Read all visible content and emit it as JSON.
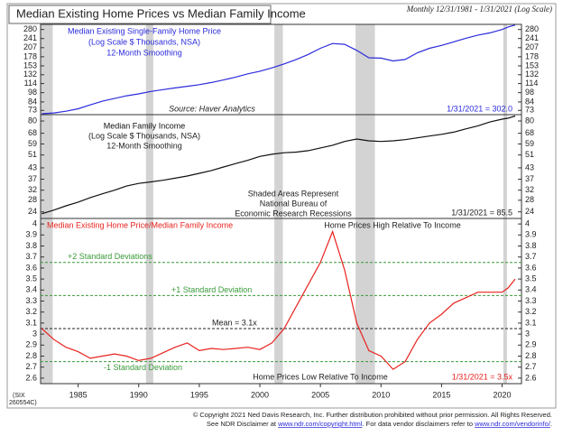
{
  "title": "Median Existing Home Prices vs Median Family Income",
  "subtitle": "Monthly 12/31/1981 - 1/31/2021 (Log Scale)",
  "id_label": [
    "(SIX",
    "260554C)"
  ],
  "footer": [
    "© Copyright 2021 Ned Davis Research, Inc.  Further distribution prohibited without prior permission.  All Rights Reserved.",
    "See NDR Disclaimer at ",
    "www.ndr.com/copyright.html",
    ".  For data vendor disclaimers refer to ",
    "www.ndr.com/vendorinfo/",
    "."
  ],
  "recessions": [
    [
      1981.5,
      1982.9
    ],
    [
      1990.6,
      1991.2
    ],
    [
      2001.2,
      2001.9
    ],
    [
      2007.9,
      2009.5
    ],
    [
      2020.1,
      2020.4
    ]
  ],
  "chart_data": [
    {
      "type": "line",
      "log_scale": true,
      "x": [
        1982,
        1983,
        1984,
        1985,
        1986,
        1987,
        1988,
        1989,
        1990,
        1991,
        1992,
        1993,
        1994,
        1995,
        1996,
        1997,
        1998,
        1999,
        2000,
        2001,
        2002,
        2003,
        2004,
        2005,
        2006,
        2007,
        2008,
        2009,
        2010,
        2011,
        2012,
        2013,
        2014,
        2015,
        2016,
        2017,
        2018,
        2019,
        2020,
        2020.5,
        2021.08
      ],
      "series": [
        {
          "name": "Median Existing Single-Family Home Price",
          "color": "#2b2bdc",
          "values": [
            69,
            70,
            72,
            75,
            80,
            85,
            89,
            93,
            96,
            100,
            103,
            106,
            109,
            112,
            116,
            121,
            127,
            134,
            140,
            148,
            158,
            170,
            185,
            205,
            222,
            219,
            198,
            175,
            174,
            166,
            170,
            190,
            205,
            215,
            228,
            242,
            255,
            265,
            280,
            292,
            302
          ]
        }
      ],
      "annotations": [
        "(Log Scale $ Thousands, NSA)",
        "12-Month Smoothing",
        "Source: Haver Analytics",
        "1/31/2021 = 302.0"
      ],
      "xlim": [
        1981.9,
        2021.6
      ],
      "ylim": [
        68,
        305
      ],
      "yticks": [
        73,
        84,
        98,
        114,
        132,
        153,
        178,
        207,
        241,
        280
      ]
    },
    {
      "type": "line",
      "log_scale": true,
      "x": [
        1982,
        1983,
        1984,
        1985,
        1986,
        1987,
        1988,
        1989,
        1990,
        1991,
        1992,
        1993,
        1994,
        1995,
        1996,
        1997,
        1998,
        1999,
        2000,
        2001,
        2002,
        2003,
        2004,
        2005,
        2006,
        2007,
        2008,
        2009,
        2010,
        2011,
        2012,
        2013,
        2014,
        2015,
        2016,
        2017,
        2018,
        2019,
        2020,
        2020.5,
        2021.08
      ],
      "series": [
        {
          "name": "Median Family Income",
          "color": "#111111",
          "values": [
            23.4,
            24.6,
            26,
            27.3,
            29,
            30.5,
            32,
            33.8,
            35,
            35.7,
            36.5,
            37.5,
            38.6,
            40,
            41.5,
            43.5,
            45.5,
            47.5,
            50,
            51.5,
            52.5,
            53,
            54,
            56,
            58,
            61,
            63,
            61.5,
            61,
            61.5,
            62.5,
            64,
            65.5,
            67,
            69,
            72,
            75,
            79,
            82,
            83,
            85.5
          ]
        }
      ],
      "annotations": [
        "(Log Scale $ Thousands, NSA)",
        "12-Month Smoothing",
        "Shaded Areas Represent",
        "National Bureau of",
        "Economic Research Recessions",
        "1/31/2021 = 85.5"
      ],
      "xlim": [
        1981.9,
        2021.6
      ],
      "ylim": [
        22,
        87
      ],
      "yticks": [
        24,
        28,
        32,
        37,
        43,
        51,
        59,
        68,
        80
      ]
    },
    {
      "type": "line",
      "log_scale": false,
      "x": [
        1982,
        1983,
        1984,
        1985,
        1986,
        1987,
        1988,
        1989,
        1990,
        1991,
        1992,
        1993,
        1994,
        1995,
        1996,
        1997,
        1998,
        1999,
        2000,
        2001,
        2002,
        2003,
        2004,
        2005,
        2006,
        2007,
        2008,
        2009,
        2010,
        2011,
        2012,
        2013,
        2014,
        2015,
        2016,
        2017,
        2018,
        2019,
        2020,
        2020.5,
        2021.08
      ],
      "series": [
        {
          "name": "Median Existing Home Price/Median Family Income",
          "color": "#e8231f",
          "values": [
            3.05,
            2.95,
            2.88,
            2.84,
            2.78,
            2.8,
            2.82,
            2.8,
            2.76,
            2.78,
            2.83,
            2.88,
            2.92,
            2.85,
            2.87,
            2.86,
            2.87,
            2.88,
            2.86,
            2.92,
            3.05,
            3.25,
            3.45,
            3.65,
            3.93,
            3.58,
            3.1,
            2.85,
            2.8,
            2.68,
            2.75,
            2.95,
            3.1,
            3.18,
            3.28,
            3.33,
            3.38,
            3.38,
            3.38,
            3.42,
            3.5
          ]
        }
      ],
      "reference_lines": [
        {
          "value": 3.65,
          "label": "+2 Standard Deviations",
          "color": "#3a9a3a"
        },
        {
          "value": 3.35,
          "label": "+1 Standard Deviation",
          "color": "#3a9a3a"
        },
        {
          "value": 3.05,
          "label": "Mean = 3.1x",
          "color": "#222222"
        },
        {
          "value": 2.75,
          "label": "-1 Standard Deviation",
          "color": "#3a9a3a"
        }
      ],
      "annotations": [
        "Home Prices High Relative To Income",
        "Home Prices Low Relative To Income",
        "1/31/2021 = 3.5x"
      ],
      "xlim": [
        1981.9,
        2021.6
      ],
      "ylim": [
        2.55,
        4.05
      ],
      "yticks": [
        2.6,
        2.7,
        2.8,
        2.9,
        3.0,
        3.1,
        3.2,
        3.3,
        3.4,
        3.5,
        3.6,
        3.7,
        3.8,
        3.9,
        4.0
      ],
      "xticks": [
        1985,
        1990,
        1995,
        2000,
        2005,
        2010,
        2015,
        2020
      ]
    }
  ]
}
